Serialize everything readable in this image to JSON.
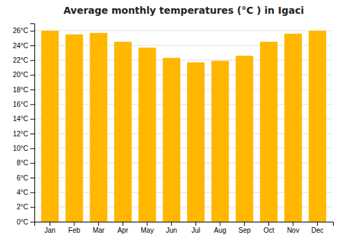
{
  "chart_data": {
    "type": "bar",
    "title": "Average monthly temperatures (°C ) in Igaci",
    "categories": [
      "Jan",
      "Feb",
      "Mar",
      "Apr",
      "May",
      "Jun",
      "Jul",
      "Aug",
      "Sep",
      "Oct",
      "Nov",
      "Dec"
    ],
    "values": [
      26.0,
      25.5,
      25.7,
      24.5,
      23.7,
      22.3,
      21.7,
      21.9,
      22.6,
      24.5,
      25.6,
      26.0
    ],
    "color": "#FFB700",
    "ylim": [
      0,
      27
    ],
    "yticks": [
      {
        "value": 0,
        "label": "0°C"
      },
      {
        "value": 2,
        "label": "2°C"
      },
      {
        "value": 4,
        "label": "4°C"
      },
      {
        "value": 6,
        "label": "6°C"
      },
      {
        "value": 8,
        "label": "8°C"
      },
      {
        "value": 10,
        "label": "10°C"
      },
      {
        "value": 12,
        "label": "12°C"
      },
      {
        "value": 14,
        "label": "14°C"
      },
      {
        "value": 16,
        "label": "16°C"
      },
      {
        "value": 18,
        "label": "18°C"
      },
      {
        "value": 20,
        "label": "20°C"
      },
      {
        "value": 22,
        "label": "22°C"
      },
      {
        "value": 24,
        "label": "24°C"
      },
      {
        "value": 26,
        "label": "26°C"
      }
    ],
    "grid": true
  }
}
